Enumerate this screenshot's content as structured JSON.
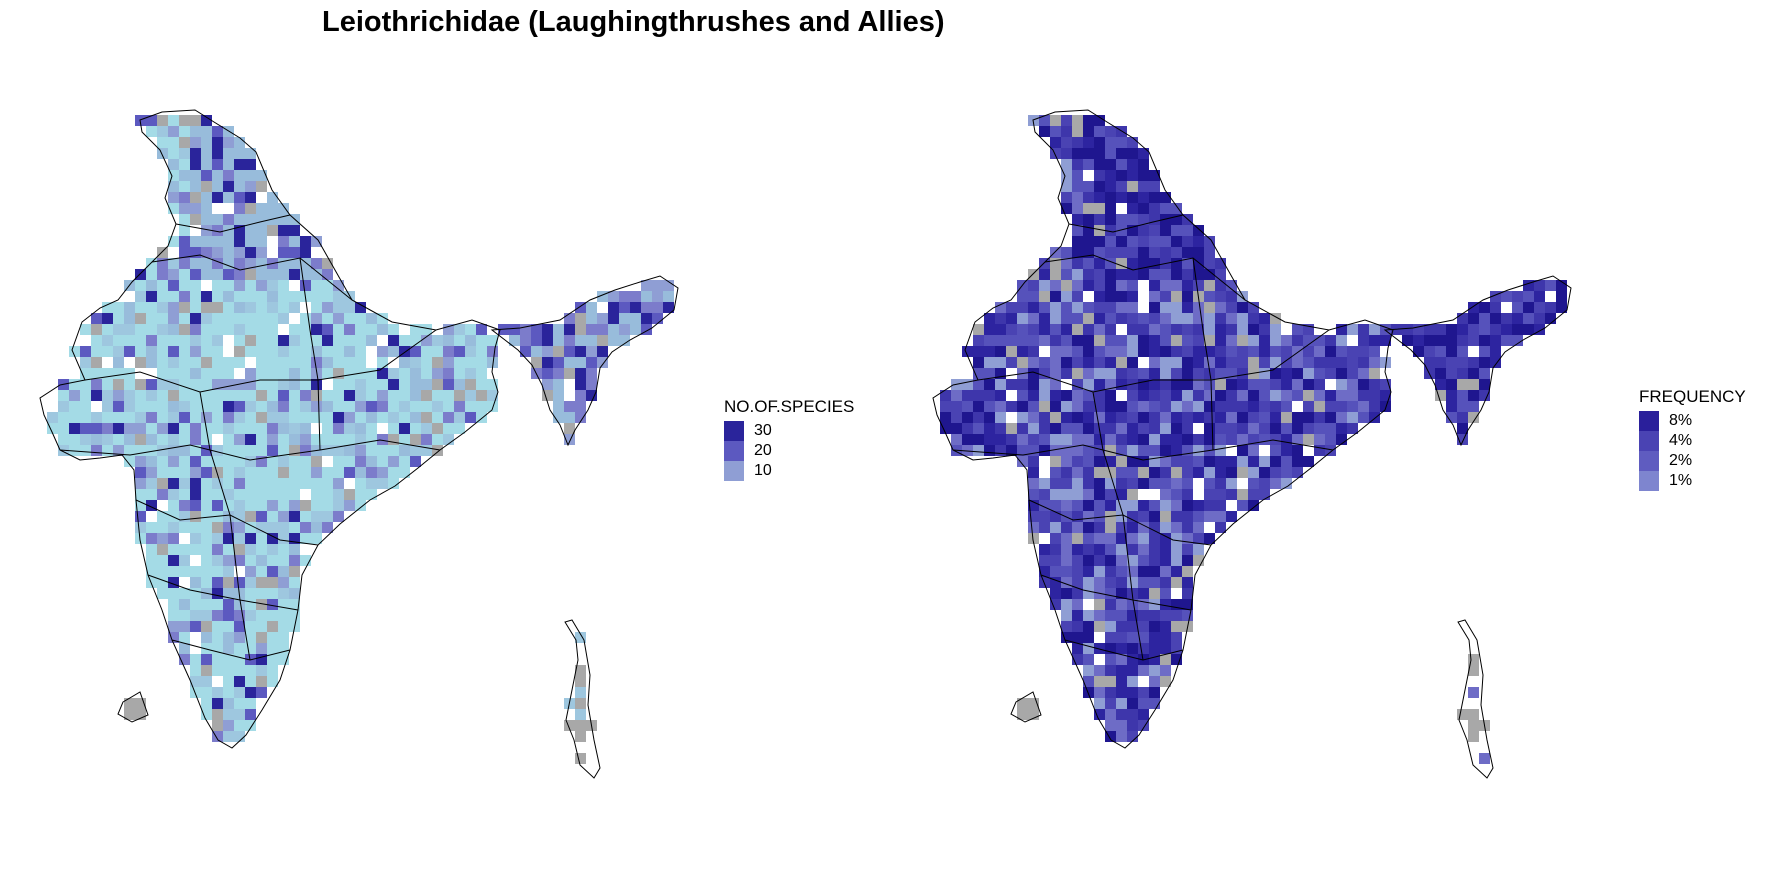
{
  "title": "Leiothrichidae (Laughingthrushes and Allies)",
  "colors": {
    "background": "#ffffff",
    "no_data": "#a8a8a8",
    "border": "#000000"
  },
  "left_map": {
    "fill_palette": [
      "#a4dbe6",
      "#9ec7df",
      "#98bcdb",
      "#8f9ed4",
      "#7c7ccb",
      "#5c59c0",
      "#2a249b"
    ],
    "legend": {
      "title": "NO.OF.SPECIES",
      "entries": [
        {
          "label": "30",
          "color": "#2a249b"
        },
        {
          "label": "20",
          "color": "#5c59c0"
        },
        {
          "label": "10",
          "color": "#8f9ed4"
        }
      ]
    }
  },
  "right_map": {
    "fill_palette": [
      "#8f9ed4",
      "#6e6cc6",
      "#5652bb",
      "#4a43b3",
      "#3e36ab",
      "#2d24a0",
      "#1f168f"
    ],
    "legend": {
      "title": "FREQUENCY",
      "entries": [
        {
          "label": "8%",
          "color": "#2a1f9b"
        },
        {
          "label": "4%",
          "color": "#4a43b3"
        },
        {
          "label": "2%",
          "color": "#5f5cc0"
        },
        {
          "label": "1%",
          "color": "#7e85cf"
        }
      ]
    }
  }
}
